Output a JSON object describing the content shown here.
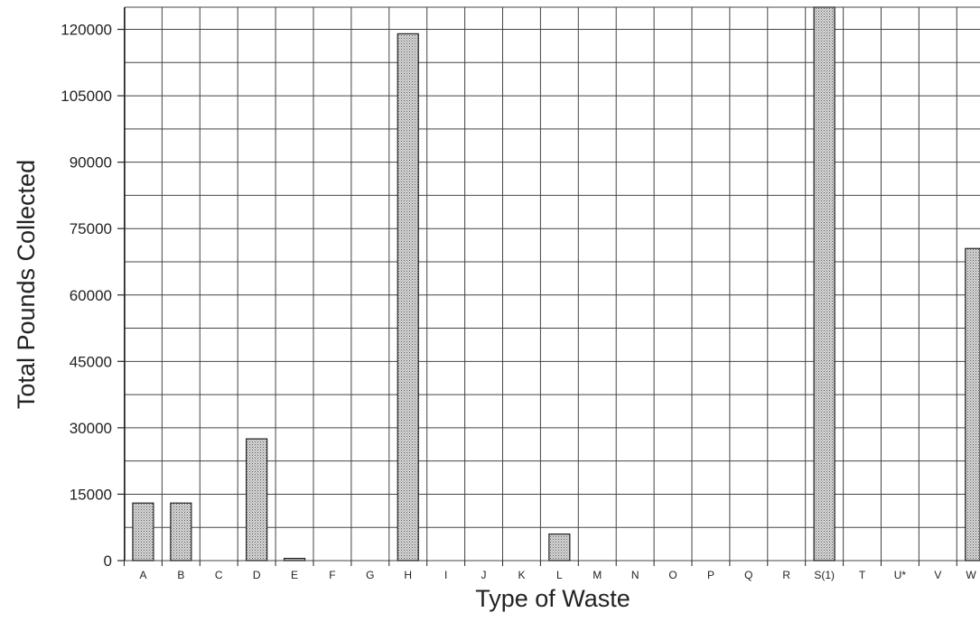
{
  "chart_data": {
    "type": "bar",
    "title": "",
    "xlabel": "Type of Waste",
    "ylabel": "Total Pounds Collected",
    "ylim": [
      0,
      125000
    ],
    "yticks": [
      0,
      15000,
      30000,
      45000,
      60000,
      75000,
      90000,
      105000,
      120000
    ],
    "grid": true,
    "categories": [
      "A",
      "B",
      "C",
      "D",
      "E",
      "F",
      "G",
      "H",
      "I",
      "J",
      "K",
      "L",
      "M",
      "N",
      "O",
      "P",
      "Q",
      "R",
      "S(1)",
      "T",
      "U*",
      "V",
      "W"
    ],
    "values": [
      13000,
      13000,
      0,
      27500,
      500,
      0,
      0,
      119000,
      0,
      0,
      0,
      6000,
      0,
      0,
      0,
      0,
      0,
      0,
      125000,
      0,
      0,
      0,
      70500
    ],
    "bar_pattern": "stippled-gray"
  }
}
